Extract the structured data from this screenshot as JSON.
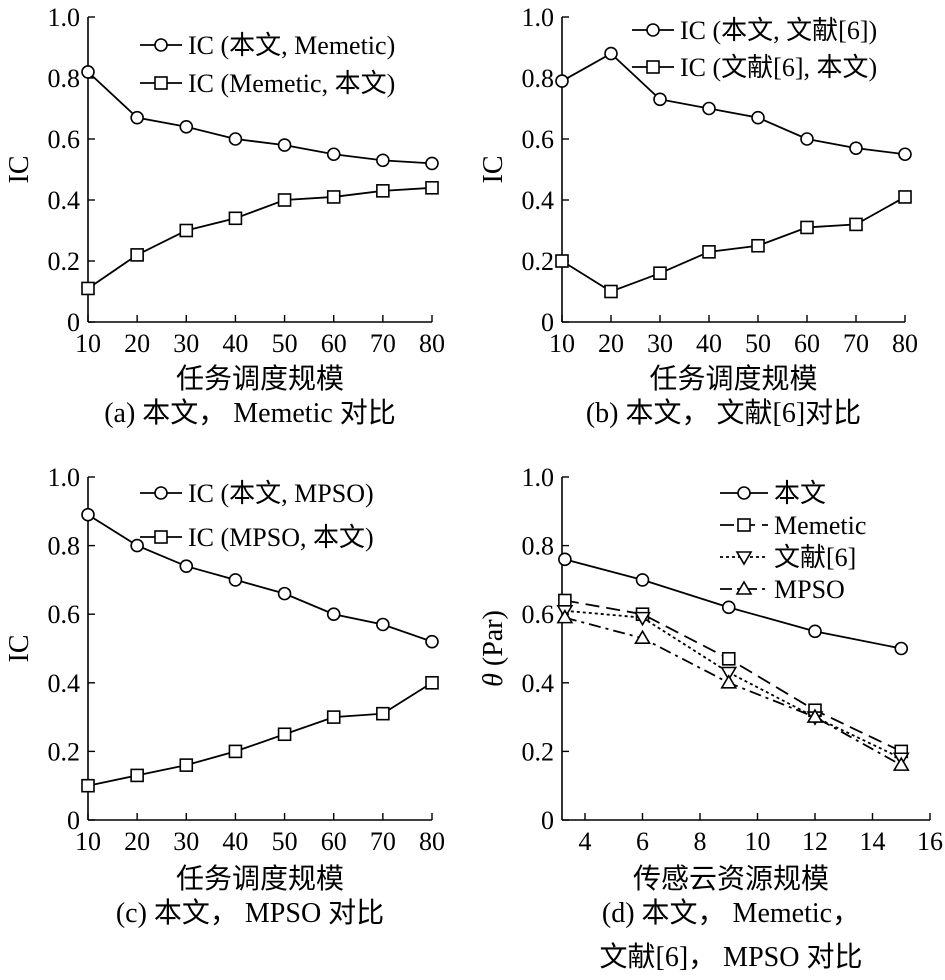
{
  "chart_data": [
    {
      "id": "a",
      "type": "line",
      "caption": "(a) 本文， Memetic 对比",
      "xlabel": "任务调度规模",
      "ylabel": "IC",
      "xlim": [
        10,
        80
      ],
      "ylim": [
        0,
        1.0
      ],
      "xticks": [
        "10",
        "20",
        "30",
        "40",
        "50",
        "60",
        "70",
        "80"
      ],
      "yticks": [
        "0",
        "0.2",
        "0.4",
        "0.6",
        "0.8",
        "1.0"
      ],
      "x": [
        10,
        20,
        30,
        40,
        50,
        60,
        70,
        80
      ],
      "legend_position": "top-right",
      "series": [
        {
          "name": "IC (本文, Memetic)",
          "marker": "circle",
          "dash": "solid",
          "values": [
            0.82,
            0.67,
            0.64,
            0.6,
            0.58,
            0.55,
            0.53,
            0.52
          ]
        },
        {
          "name": "IC (Memetic, 本文)",
          "marker": "square",
          "dash": "solid",
          "values": [
            0.11,
            0.22,
            0.3,
            0.34,
            0.4,
            0.41,
            0.43,
            0.44
          ]
        }
      ]
    },
    {
      "id": "b",
      "type": "line",
      "caption": "(b) 本文， 文献[6]对比",
      "xlabel": "任务调度规模",
      "ylabel": "IC",
      "xlim": [
        10,
        80
      ],
      "ylim": [
        0,
        1.0
      ],
      "xticks": [
        "10",
        "20",
        "30",
        "40",
        "50",
        "60",
        "70",
        "80"
      ],
      "yticks": [
        "0",
        "0.2",
        "0.4",
        "0.6",
        "0.8",
        "1.0"
      ],
      "x": [
        10,
        20,
        30,
        40,
        50,
        60,
        70,
        80
      ],
      "legend_position": "top-right",
      "series": [
        {
          "name": "IC (本文, 文献[6])",
          "marker": "circle",
          "dash": "solid",
          "values": [
            0.79,
            0.88,
            0.73,
            0.7,
            0.67,
            0.6,
            0.57,
            0.55
          ]
        },
        {
          "name": "IC (文献[6], 本文)",
          "marker": "square",
          "dash": "solid",
          "values": [
            0.2,
            0.1,
            0.16,
            0.23,
            0.25,
            0.31,
            0.32,
            0.41
          ]
        }
      ]
    },
    {
      "id": "c",
      "type": "line",
      "caption": "(c) 本文， MPSO 对比",
      "xlabel": "任务调度规模",
      "ylabel": "IC",
      "xlim": [
        10,
        80
      ],
      "ylim": [
        0,
        1.0
      ],
      "xticks": [
        "10",
        "20",
        "30",
        "40",
        "50",
        "60",
        "70",
        "80"
      ],
      "yticks": [
        "0",
        "0.2",
        "0.4",
        "0.6",
        "0.8",
        "1.0"
      ],
      "x": [
        10,
        20,
        30,
        40,
        50,
        60,
        70,
        80
      ],
      "legend_position": "top-right",
      "series": [
        {
          "name": "IC (本文, MPSO)",
          "marker": "circle",
          "dash": "solid",
          "values": [
            0.89,
            0.8,
            0.74,
            0.7,
            0.66,
            0.6,
            0.57,
            0.52
          ]
        },
        {
          "name": "IC (MPSO, 本文)",
          "marker": "square",
          "dash": "solid",
          "values": [
            0.1,
            0.13,
            0.16,
            0.2,
            0.25,
            0.3,
            0.31,
            0.4
          ]
        }
      ]
    },
    {
      "id": "d",
      "type": "line",
      "caption": [
        "(d) 本文， Memetic，",
        "文献[6]， MPSO 对比"
      ],
      "xlabel": "传感云资源规模",
      "ylabel_italic": "θ",
      "ylabel": " (Par)",
      "xlim": [
        3.2,
        16
      ],
      "ylim": [
        0,
        1.0
      ],
      "xticks": [
        "4",
        "6",
        "8",
        "10",
        "12",
        "14",
        "16"
      ],
      "yticks": [
        "0",
        "0.2",
        "0.4",
        "0.6",
        "0.8",
        "1.0"
      ],
      "x": [
        3.3,
        6,
        9,
        12,
        15
      ],
      "legend_position": "top-right",
      "series": [
        {
          "name": "本文",
          "marker": "circle",
          "dash": "solid",
          "values": [
            0.76,
            0.7,
            0.62,
            0.55,
            0.5
          ]
        },
        {
          "name": "Memetic",
          "marker": "square",
          "dash": "longdash",
          "values": [
            0.64,
            0.6,
            0.47,
            0.32,
            0.2
          ]
        },
        {
          "name": "文献[6]",
          "marker": "triangle-down",
          "dash": "dotted",
          "values": [
            0.61,
            0.59,
            0.43,
            0.3,
            0.18
          ]
        },
        {
          "name": "MPSO",
          "marker": "triangle-up",
          "dash": "dashdot",
          "values": [
            0.59,
            0.53,
            0.4,
            0.3,
            0.16
          ]
        }
      ]
    }
  ]
}
